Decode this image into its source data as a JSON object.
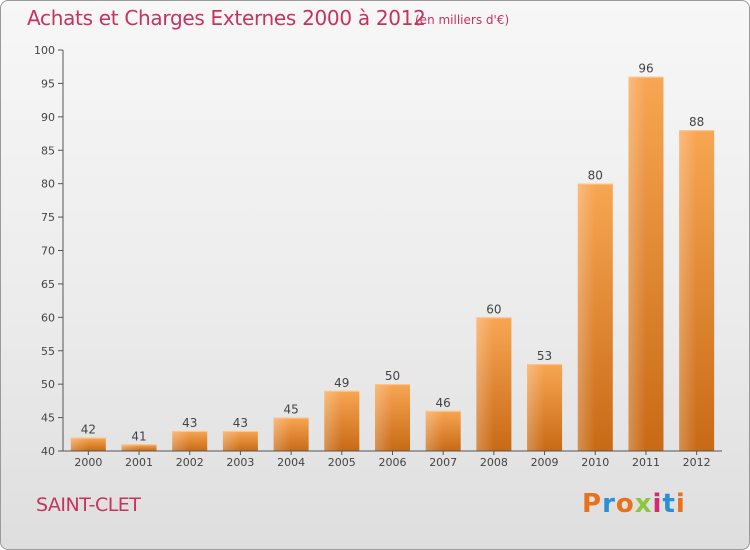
{
  "header": {
    "title": "Achats et Charges Externes 2000 à 2012",
    "unit": "(en milliers d'€)"
  },
  "footer": {
    "commune": "SAINT-CLET",
    "logo": "Proxiti",
    "logo_colors": [
      "#e8711a",
      "#2a8fd6",
      "#e8711a",
      "#8cc63f",
      "#d62a6c",
      "#2a8fd6",
      "#e8711a"
    ]
  },
  "colors": {
    "bar_light": "#f7a24e",
    "bar_dark": "#c96a14",
    "text": "#c8325e",
    "axis": "#555555"
  },
  "chart_data": {
    "type": "bar",
    "title": "Achats et Charges Externes 2000 à 2012",
    "subtitle": "(en milliers d'€)",
    "categories": [
      "2000",
      "2001",
      "2002",
      "2003",
      "2004",
      "2005",
      "2006",
      "2007",
      "2008",
      "2009",
      "2010",
      "2011",
      "2012"
    ],
    "values": [
      42,
      41,
      43,
      43,
      45,
      49,
      50,
      46,
      60,
      53,
      80,
      96,
      88
    ],
    "data_labels": [
      "42",
      "41",
      "43",
      "43",
      "45",
      "49",
      "50",
      "46",
      "60",
      "53",
      "80",
      "96",
      "88"
    ],
    "ylim": [
      40,
      100
    ],
    "yticks": [
      40,
      45,
      50,
      55,
      60,
      65,
      70,
      75,
      80,
      85,
      90,
      95,
      100
    ],
    "grid": false,
    "legend": "none"
  }
}
